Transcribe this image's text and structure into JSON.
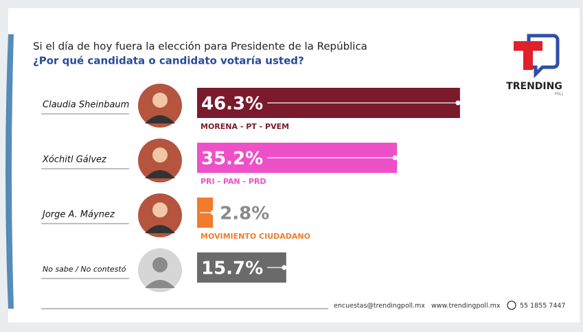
{
  "chart_data": {
    "type": "bar",
    "title": "Si el día de hoy fuera la elección para Presidente de la República",
    "subtitle": "¿Por qué candidata o candidato votaría usted?",
    "categories": [
      "Claudia Sheinbaum",
      "Xóchitl Gálvez",
      "Jorge A. Máynez",
      "No sabe / No contestó"
    ],
    "values": [
      46.3,
      35.2,
      2.8,
      15.7
    ],
    "value_labels": [
      "46.3%",
      "35.2%",
      "2.8%",
      "15.7%"
    ],
    "parties": [
      "MORENA - PT - PVEM",
      "PRI - PAN - PRD",
      "MOVIMIENTO CIUDADANO",
      null
    ],
    "colors": [
      "#7a1a2c",
      "#ee50c8",
      "#f07c2c",
      "#6a6a6a"
    ],
    "logo": {
      "name": "TRENDING",
      "sub": "POLL"
    },
    "footer": {
      "email": "encuestas@trendingpoll.mx",
      "web": "www.trendingpoll.mx",
      "phone": "55 1855 7447"
    }
  }
}
